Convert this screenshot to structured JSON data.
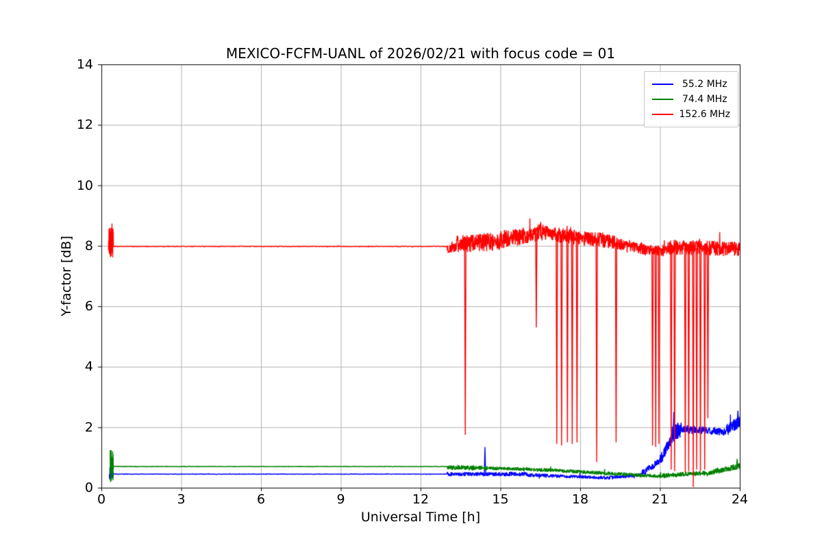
{
  "chart_data": {
    "type": "line",
    "title": "MEXICO-FCFM-UANL of 2026/02/21 with focus code = 01",
    "xlabel": "Universal Time [h]",
    "ylabel": "Y-factor [dB]",
    "xlim": [
      0,
      24
    ],
    "ylim": [
      0,
      14
    ],
    "xticks": [
      0,
      3,
      6,
      9,
      12,
      15,
      18,
      21,
      24
    ],
    "yticks": [
      0,
      2,
      4,
      6,
      8,
      10,
      12,
      14
    ],
    "grid": true,
    "grid_color": "#b0b0b0",
    "axis_color": "#000000",
    "legend": {
      "position": "upper right",
      "entries": [
        {
          "label": " 55.2 MHz",
          "color": "#0000ff"
        },
        {
          "label": " 74.4 MHz",
          "color": "#008000"
        },
        {
          "label": "152.6 MHz",
          "color": "#ff0000"
        }
      ]
    },
    "series": [
      {
        "name": "55.2 MHz",
        "color": "#0000ff",
        "segments": [
          {
            "x0": 0.3,
            "x1": 0.44,
            "y0": 0.35,
            "y1": 0.45,
            "noise": 0.13,
            "density": 8
          },
          {
            "x0": 0.44,
            "x1": 13.0,
            "y0": 0.45,
            "y1": 0.45,
            "noise": 0.01
          },
          {
            "x0": 13.0,
            "x1": 16.0,
            "y0": 0.45,
            "y1": 0.45,
            "noise": 0.07,
            "density": 3
          },
          {
            "x0": 16.0,
            "x1": 19.0,
            "y0": 0.42,
            "y1": 0.33,
            "noise": 0.06,
            "density": 3
          },
          {
            "x0": 19.0,
            "x1": 20.3,
            "y0": 0.33,
            "y1": 0.42,
            "noise": 0.06,
            "density": 3
          },
          {
            "x0": 20.3,
            "x1": 21.0,
            "y0": 0.45,
            "y1": 0.9,
            "noise": 0.12,
            "density": 3
          },
          {
            "x0": 21.0,
            "x1": 21.45,
            "y0": 0.9,
            "y1": 1.65,
            "noise": 0.18,
            "density": 4
          },
          {
            "x0": 21.45,
            "x1": 21.8,
            "y0": 1.75,
            "y1": 1.95,
            "noise": 0.28,
            "density": 5
          },
          {
            "x0": 21.8,
            "x1": 23.5,
            "y0": 1.95,
            "y1": 1.85,
            "noise": 0.13,
            "density": 3
          },
          {
            "x0": 23.5,
            "x1": 24.0,
            "y0": 1.9,
            "y1": 2.2,
            "noise": 0.2,
            "density": 4
          }
        ],
        "spikes": [
          {
            "x": 14.42,
            "y": 1.35
          },
          {
            "x": 21.52,
            "y": 2.5
          },
          {
            "x": 23.93,
            "y": 2.55
          }
        ]
      },
      {
        "name": "74.4 MHz",
        "color": "#008000",
        "segments": [
          {
            "x0": 0.33,
            "x1": 0.45,
            "y0": 0.7,
            "y1": 0.7,
            "noise": 0.55,
            "density": 10
          },
          {
            "x0": 0.45,
            "x1": 13.0,
            "y0": 0.7,
            "y1": 0.7,
            "noise": 0.01
          },
          {
            "x0": 13.0,
            "x1": 14.5,
            "y0": 0.68,
            "y1": 0.65,
            "noise": 0.08,
            "density": 3
          },
          {
            "x0": 14.5,
            "x1": 17.0,
            "y0": 0.65,
            "y1": 0.58,
            "noise": 0.06,
            "density": 3
          },
          {
            "x0": 17.0,
            "x1": 19.5,
            "y0": 0.58,
            "y1": 0.45,
            "noise": 0.06,
            "density": 3
          },
          {
            "x0": 19.5,
            "x1": 21.0,
            "y0": 0.45,
            "y1": 0.38,
            "noise": 0.06,
            "density": 3
          },
          {
            "x0": 21.0,
            "x1": 23.0,
            "y0": 0.4,
            "y1": 0.5,
            "noise": 0.08,
            "density": 3
          },
          {
            "x0": 23.0,
            "x1": 24.0,
            "y0": 0.52,
            "y1": 0.72,
            "noise": 0.1,
            "density": 4
          }
        ],
        "spikes": [
          {
            "x": 23.9,
            "y": 0.95
          }
        ]
      },
      {
        "name": "152.6 MHz",
        "color": "#ff0000",
        "segments": [
          {
            "x0": 0.27,
            "x1": 0.45,
            "y0": 8.1,
            "y1": 8.1,
            "noise": 0.5,
            "density": 10
          },
          {
            "x0": 0.45,
            "x1": 13.0,
            "y0": 7.98,
            "y1": 7.98,
            "noise": 0.012
          },
          {
            "x0": 13.0,
            "x1": 13.35,
            "y0": 7.9,
            "y1": 7.95,
            "noise": 0.15,
            "density": 3
          },
          {
            "x0": 13.35,
            "x1": 15.0,
            "y0": 8.05,
            "y1": 8.15,
            "noise": 0.3,
            "density": 3
          },
          {
            "x0": 15.0,
            "x1": 16.6,
            "y0": 8.2,
            "y1": 8.45,
            "noise": 0.3,
            "density": 3
          },
          {
            "x0": 16.6,
            "x1": 17.6,
            "y0": 8.45,
            "y1": 8.3,
            "noise": 0.25,
            "density": 3
          },
          {
            "x0": 17.6,
            "x1": 19.3,
            "y0": 8.3,
            "y1": 8.15,
            "noise": 0.25,
            "density": 3
          },
          {
            "x0": 19.3,
            "x1": 20.4,
            "y0": 8.1,
            "y1": 7.9,
            "noise": 0.2,
            "density": 3
          },
          {
            "x0": 20.4,
            "x1": 21.3,
            "y0": 7.85,
            "y1": 7.85,
            "noise": 0.18,
            "density": 3
          },
          {
            "x0": 21.3,
            "x1": 24.0,
            "y0": 7.95,
            "y1": 7.9,
            "noise": 0.25,
            "density": 3
          }
        ],
        "spikes": [
          {
            "x": 13.68,
            "y": 1.75
          },
          {
            "x": 16.35,
            "y": 5.3
          },
          {
            "x": 17.12,
            "y": 1.45
          },
          {
            "x": 17.3,
            "y": 1.4
          },
          {
            "x": 17.52,
            "y": 1.5
          },
          {
            "x": 17.7,
            "y": 1.45
          },
          {
            "x": 17.88,
            "y": 1.5
          },
          {
            "x": 18.62,
            "y": 0.85
          },
          {
            "x": 19.35,
            "y": 1.5
          },
          {
            "x": 20.72,
            "y": 1.4
          },
          {
            "x": 20.84,
            "y": 1.35
          },
          {
            "x": 20.96,
            "y": 1.45
          },
          {
            "x": 21.42,
            "y": 0.6
          },
          {
            "x": 21.55,
            "y": 0.55
          },
          {
            "x": 21.95,
            "y": 0.5
          },
          {
            "x": 22.08,
            "y": 0.55
          },
          {
            "x": 22.25,
            "y": 0.02
          },
          {
            "x": 22.38,
            "y": 0.6
          },
          {
            "x": 22.52,
            "y": 0.55
          },
          {
            "x": 22.68,
            "y": 0.6
          },
          {
            "x": 22.8,
            "y": 2.3
          }
        ]
      }
    ]
  }
}
